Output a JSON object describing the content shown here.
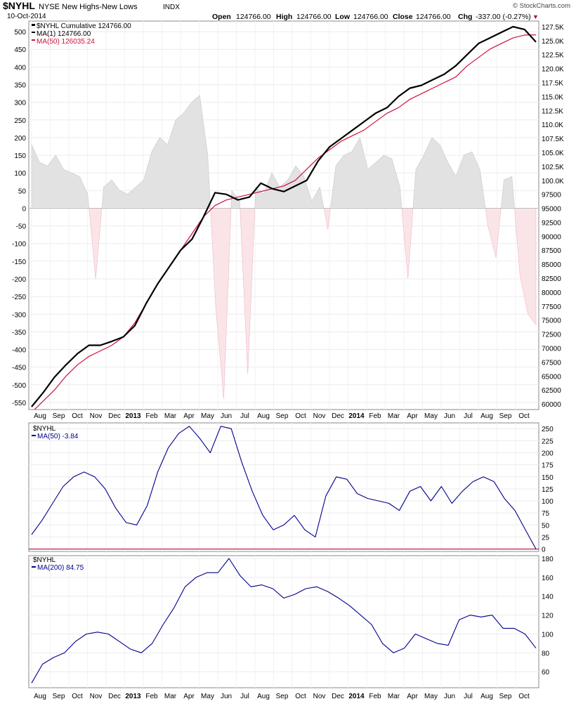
{
  "header": {
    "symbol": "$NYHL",
    "name": "NYSE New Highs-New Lows",
    "exchange": "INDX",
    "date": "10-Oct-2014",
    "brand": "© StockCharts.com",
    "open_label": "Open",
    "open": "124766.00",
    "high_label": "High",
    "high": "124766.00",
    "low_label": "Low",
    "low": "124766.00",
    "close_label": "Close",
    "close": "124766.00",
    "chg_label": "Chg",
    "chg": "-337.00 (-0.27%)",
    "chg_arrow": "▼"
  },
  "legend_main": [
    {
      "label": "$NYHL Cumulative 124766.00",
      "color": "#000000"
    },
    {
      "label": "MA(1) 124766.00",
      "color": "#000000"
    },
    {
      "label": "MA(50) 126035.24",
      "color": "#d0103a"
    }
  ],
  "legend_p2": {
    "title": "$NYHL",
    "label": "MA(50) -3.84",
    "color": "#00008b"
  },
  "legend_p3": {
    "title": "$NYHL",
    "label": "MA(200) 84.75",
    "color": "#00008b"
  },
  "x_axis": {
    "labels": [
      "Aug",
      "Sep",
      "Oct",
      "Nov",
      "Dec",
      "2013",
      "Feb",
      "Mar",
      "Apr",
      "May",
      "Jun",
      "Jul",
      "Aug",
      "Sep",
      "Oct",
      "Nov",
      "Dec",
      "2014",
      "Feb",
      "Mar",
      "Apr",
      "May",
      "Jun",
      "Jul",
      "Aug",
      "Sep",
      "Oct"
    ],
    "bold": [
      "2013",
      "2014"
    ]
  },
  "chart_data": [
    {
      "type": "line",
      "title": "$NYHL NYSE New Highs-New Lows INDX",
      "x_start": "Jul-2012",
      "x_end": "10-Oct-2014",
      "left_axis": {
        "ylim": [
          -570,
          530
        ],
        "ticks": [
          "500",
          "450",
          "400",
          "350",
          "300",
          "250",
          "200",
          "150",
          "100",
          "50",
          "0",
          "-50",
          "-100",
          "-150",
          "-200",
          "-250",
          "-300",
          "-350",
          "-400",
          "-450",
          "-500",
          "-550"
        ]
      },
      "right_axis": {
        "ylim": [
          59000,
          128500
        ],
        "ticks": [
          "127.5K",
          "125.0K",
          "122.5K",
          "120.0K",
          "117.5K",
          "115.0K",
          "112.5K",
          "110.0K",
          "107.5K",
          "105.0K",
          "102.5K",
          "100.0K",
          "97500",
          "95000",
          "92500",
          "90000",
          "87500",
          "85000",
          "82500",
          "80000",
          "77500",
          "75000",
          "72500",
          "70000",
          "67500",
          "65000",
          "62500",
          "60000"
        ]
      },
      "series": [
        {
          "name": "$NYHL Cumulative (MA(1))",
          "axis": "right",
          "color": "#000000",
          "values": [
            59500,
            62000,
            64800,
            67000,
            69000,
            70500,
            70500,
            71200,
            72000,
            74000,
            78000,
            81500,
            84500,
            87500,
            89500,
            93500,
            97800,
            97500,
            96500,
            97000,
            99500,
            98500,
            98000,
            99000,
            100000,
            103500,
            106000,
            107500,
            109000,
            110500,
            112000,
            113000,
            115000,
            116500,
            117000,
            118000,
            119000,
            120500,
            122500,
            124500,
            125500,
            126500,
            127500,
            127000,
            124766
          ]
        },
        {
          "name": "MA(50)",
          "axis": "right",
          "color": "#d0103a",
          "values": [
            58500,
            60500,
            62500,
            65000,
            67000,
            68500,
            69500,
            70500,
            72000,
            74500,
            78000,
            81500,
            84500,
            87500,
            90500,
            93500,
            95500,
            96500,
            97000,
            97500,
            98000,
            98500,
            99000,
            100000,
            102000,
            104000,
            105500,
            107000,
            108000,
            109000,
            110500,
            112000,
            113000,
            114500,
            115500,
            116500,
            117500,
            118500,
            120500,
            122000,
            123500,
            124500,
            125500,
            126000,
            126035
          ]
        },
        {
          "name": "NYHL daily (area)",
          "axis": "left",
          "color": "#c8c8c8",
          "values": [
            180,
            130,
            120,
            150,
            110,
            100,
            90,
            40,
            -200,
            60,
            80,
            50,
            40,
            60,
            80,
            160,
            200,
            180,
            250,
            270,
            300,
            320,
            150,
            -280,
            -540,
            50,
            20,
            -470,
            60,
            40,
            100,
            60,
            80,
            120,
            90,
            20,
            60,
            -60,
            120,
            150,
            160,
            200,
            110,
            130,
            150,
            140,
            60,
            -200,
            110,
            150,
            200,
            180,
            130,
            90,
            150,
            160,
            110,
            -50,
            -140,
            80,
            90,
            -190,
            -300,
            -330
          ]
        }
      ]
    },
    {
      "type": "line",
      "title": "$NYHL MA(50)",
      "ylim": [
        -5,
        262
      ],
      "ticks": [
        "250",
        "225",
        "200",
        "175",
        "150",
        "125",
        "100",
        "75",
        "50",
        "25",
        "0"
      ],
      "reference_line": 0,
      "series": [
        {
          "name": "MA(50)",
          "color": "#00008b",
          "values": [
            30,
            60,
            95,
            130,
            150,
            160,
            150,
            125,
            85,
            55,
            50,
            90,
            160,
            210,
            240,
            255,
            230,
            200,
            255,
            250,
            180,
            120,
            70,
            40,
            50,
            70,
            40,
            25,
            110,
            150,
            145,
            115,
            105,
            100,
            95,
            80,
            120,
            130,
            100,
            130,
            95,
            120,
            140,
            150,
            140,
            105,
            80,
            40,
            0
          ]
        }
      ]
    },
    {
      "type": "line",
      "title": "$NYHL MA(200)",
      "ylim": [
        43,
        183
      ],
      "ticks": [
        "180",
        "160",
        "140",
        "120",
        "100",
        "80",
        "60"
      ],
      "series": [
        {
          "name": "MA(200)",
          "color": "#00008b",
          "values": [
            48,
            68,
            75,
            80,
            92,
            100,
            102,
            100,
            92,
            84,
            80,
            90,
            110,
            128,
            150,
            160,
            165,
            165,
            180,
            162,
            150,
            152,
            148,
            138,
            142,
            148,
            150,
            145,
            138,
            130,
            120,
            110,
            90,
            80,
            85,
            100,
            95,
            90,
            88,
            115,
            120,
            118,
            120,
            106,
            106,
            100,
            85
          ]
        }
      ]
    }
  ]
}
